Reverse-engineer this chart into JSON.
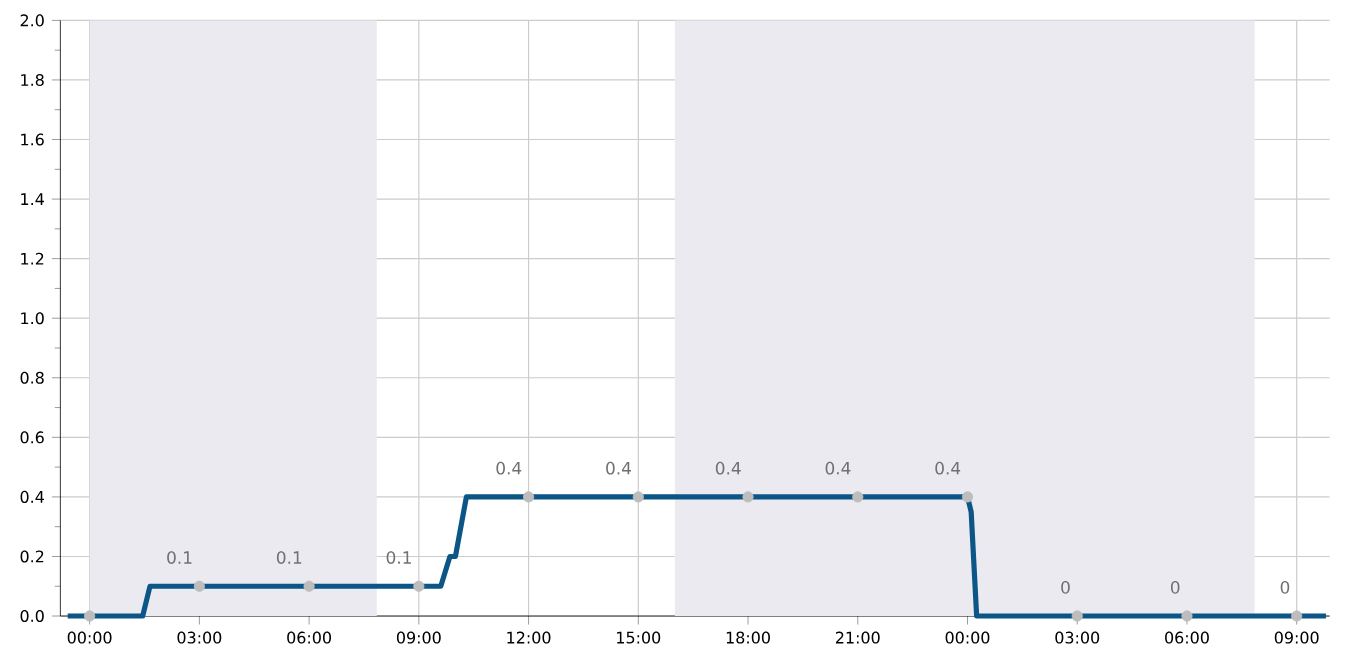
{
  "chart_data": {
    "type": "line",
    "x": [
      "1999-12-31T23:24",
      "2000-01-01T01:27",
      "2000-01-01T01:39",
      "2000-01-01T09:36",
      "2000-01-01T09:51",
      "2000-01-01T10:00",
      "2000-01-01T10:18",
      "2000-01-02T00:00",
      "2000-01-02T00:06",
      "2000-01-02T00:15",
      "2000-01-02T09:48"
    ],
    "series": [
      {
        "color": "#0b5686",
        "values": [
          0,
          0,
          0.1,
          0.1,
          0.2,
          0.2,
          0.4,
          0.4,
          0.35,
          0,
          0
        ]
      },
      {
        "type": "scatter",
        "color": "#bdbdbd",
        "x": [
          "2000-01-01T00:00",
          "2000-01-01T03:00",
          "2000-01-01T06:00",
          "2000-01-01T09:00",
          "2000-01-01T12:00",
          "2000-01-01T15:00",
          "2000-01-01T18:00",
          "2000-01-01T21:00",
          "2000-01-02T00:00",
          "2000-01-02T03:00",
          "2000-01-02T06:00",
          "2000-01-02T09:00"
        ],
        "values": [
          0,
          0.1,
          0.1,
          0.1,
          0.4,
          0.4,
          0.4,
          0.4,
          0.4,
          0,
          0,
          0
        ],
        "value_labels": [
          null,
          "0.1",
          "0.1",
          "0.1",
          "0.4",
          "0.4",
          "0.4",
          "0.4",
          "0.4",
          "0",
          "0",
          "0"
        ]
      }
    ],
    "xlim": [
      "1999-12-31T23:12",
      "2000-01-02T09:54"
    ],
    "xticks": [
      {
        "value": "2000-01-01T00:00",
        "label": "00:00"
      },
      {
        "value": "2000-01-01T03:00",
        "label": "03:00"
      },
      {
        "value": "2000-01-01T06:00",
        "label": "06:00"
      },
      {
        "value": "2000-01-01T09:00",
        "label": "09:00"
      },
      {
        "value": "2000-01-01T12:00",
        "label": "12:00"
      },
      {
        "value": "2000-01-01T15:00",
        "label": "15:00"
      },
      {
        "value": "2000-01-01T18:00",
        "label": "18:00"
      },
      {
        "value": "2000-01-01T21:00",
        "label": "21:00"
      },
      {
        "value": "2000-01-02T00:00",
        "label": "00:00"
      },
      {
        "value": "2000-01-02T03:00",
        "label": "03:00"
      },
      {
        "value": "2000-01-02T06:00",
        "label": "06:00"
      },
      {
        "value": "2000-01-02T09:00",
        "label": "09:00"
      }
    ],
    "ylim": [
      0,
      2.0
    ],
    "yticks": [
      {
        "value": 0,
        "label": "0.0"
      },
      {
        "value": 0.2,
        "label": "0.2"
      },
      {
        "value": 0.4,
        "label": "0.4"
      },
      {
        "value": 0.6,
        "label": "0.6"
      },
      {
        "value": 0.8,
        "label": "0.8"
      },
      {
        "value": 1.0,
        "label": "1.0"
      },
      {
        "value": 1.2,
        "label": "1.2"
      },
      {
        "value": 1.4,
        "label": "1.4"
      },
      {
        "value": 1.6,
        "label": "1.6"
      },
      {
        "value": 1.8,
        "label": "1.8"
      },
      {
        "value": 2.0,
        "label": "2.0"
      }
    ],
    "bands": [
      {
        "axis": "x",
        "from": "2000-01-01T00:00",
        "to": "2000-01-01T07:51",
        "color": "#eaeaf0"
      },
      {
        "axis": "x",
        "from": "2000-01-01T16:00",
        "to": "2000-01-02T07:51",
        "color": "#eaeaf0"
      }
    ],
    "grid": true,
    "line_style": "solid"
  }
}
